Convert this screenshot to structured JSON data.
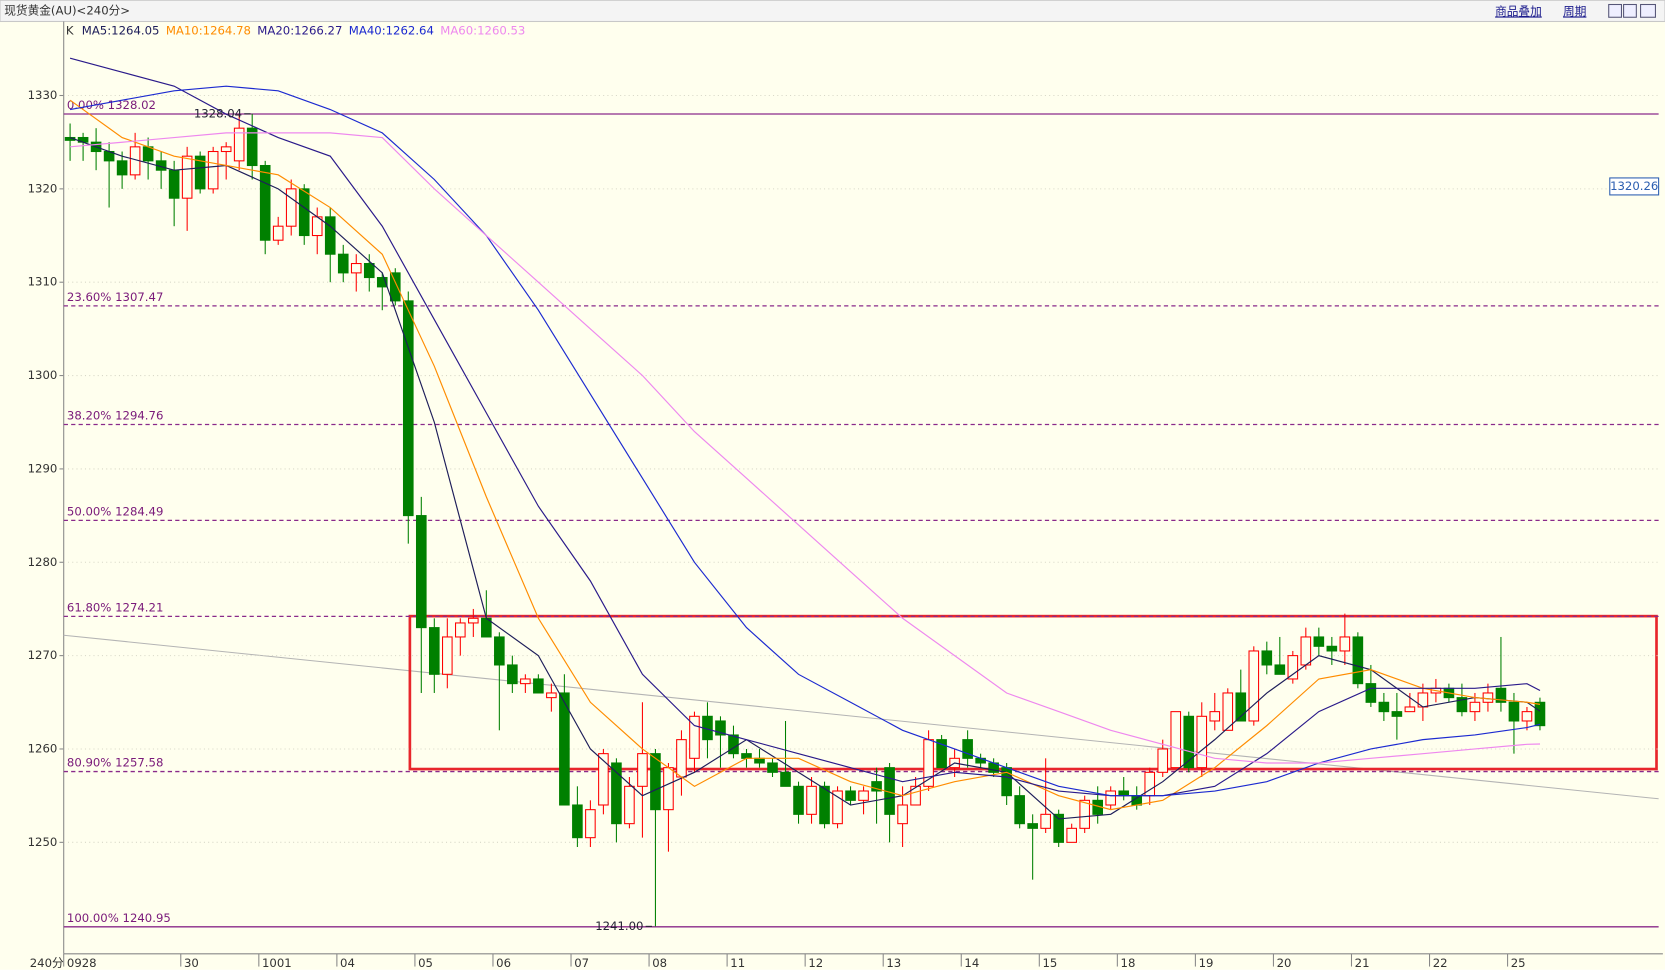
{
  "toolbar": {
    "buttons": [
      "商品叠加",
      "周期"
    ]
  },
  "chart_data": {
    "type": "candlestick",
    "title": "现货黄金(AU)<240分>",
    "legend_prefix": "K",
    "period_label": "240分",
    "categories": [
      "0928",
      null,
      null,
      null,
      null,
      null,
      null,
      null,
      null,
      "30",
      null,
      null,
      null,
      null,
      null,
      "1001",
      null,
      null,
      null,
      null,
      null,
      "04",
      null,
      null,
      null,
      null,
      null,
      "05",
      null,
      null,
      null,
      null,
      null,
      "06",
      null,
      null,
      null,
      null,
      null,
      "07",
      null,
      null,
      null,
      null,
      null,
      "08",
      null,
      null,
      null,
      null,
      null,
      "11",
      null,
      null,
      null,
      null,
      null,
      "12",
      null,
      null,
      null,
      null,
      null,
      "13",
      null,
      null,
      null,
      null,
      null,
      "14",
      null,
      null,
      null,
      null,
      null,
      "15",
      null,
      null,
      null,
      null,
      null,
      "18",
      null,
      null,
      null,
      null,
      null,
      "19",
      null,
      null,
      null,
      null,
      null,
      "20",
      null,
      null,
      null,
      null,
      null,
      "21",
      null,
      null,
      null,
      null,
      null,
      "22",
      null,
      null,
      null,
      null,
      null,
      "25",
      null,
      null
    ],
    "open": [
      1325.5,
      1325.5,
      1325,
      1324,
      1323,
      1321.5,
      1324.5,
      1323,
      1322,
      1319,
      1323.5,
      1320,
      1324,
      1323,
      1326.5,
      1322.5,
      1314.5,
      1316,
      1320,
      1315,
      1317,
      1313,
      1311,
      1312,
      1310.5,
      1311,
      1308,
      1285,
      1273,
      1268,
      1272,
      1273.5,
      1274,
      1272,
      1269,
      1267,
      1267.5,
      1265.5,
      1266,
      1254,
      1250.5,
      1254,
      1258.5,
      1252,
      1256,
      1259.5,
      1253.5,
      1257,
      1259,
      1263.5,
      1263,
      1261.5,
      1259.5,
      1259,
      1258.5,
      1257.5,
      1256,
      1253,
      1256,
      1252,
      1255.5,
      1254.5,
      1256.5,
      1258,
      1252,
      1254,
      1256,
      1261,
      1258,
      1261,
      1259,
      1258.5,
      1258,
      1255,
      1252,
      1251.5,
      1253,
      1250,
      1251.5,
      1254.5,
      1254,
      1255.5,
      1255,
      1255,
      1257.5,
      1258,
      1263.5,
      1258,
      1263,
      1262,
      1266,
      1263,
      1270.5,
      1269,
      1267.5,
      1269,
      1272,
      1271,
      1270.5,
      1272,
      1267,
      1265,
      1264,
      1264,
      1264.5,
      1266,
      1266.5,
      1265.5,
      1264,
      1265,
      1266.5,
      1265,
      1263,
      1265
    ],
    "high": [
      1327,
      1326,
      1326.5,
      1325,
      1324,
      1326,
      1325.5,
      1324,
      1323,
      1324.5,
      1324,
      1324.5,
      1325,
      1328,
      1328.04,
      1323,
      1317,
      1321,
      1320.5,
      1318,
      1318,
      1314,
      1313,
      1313,
      1311,
      1311.5,
      1309,
      1287,
      1274,
      1274,
      1274,
      1275,
      1277,
      1272.5,
      1270,
      1268,
      1268,
      1267,
      1268,
      1256,
      1254.5,
      1260,
      1259,
      1257,
      1265,
      1260,
      1258.5,
      1262,
      1264,
      1265,
      1263.5,
      1262.5,
      1260,
      1260,
      1259,
      1263,
      1256.5,
      1257,
      1256.5,
      1256,
      1256,
      1256,
      1258,
      1258.5,
      1256,
      1257,
      1262,
      1261.5,
      1260,
      1262,
      1259.5,
      1259,
      1258.5,
      1256,
      1253,
      1259,
      1253.5,
      1252,
      1255,
      1256,
      1256,
      1257,
      1256,
      1258,
      1261,
      1264,
      1264,
      1265,
      1266,
      1266.5,
      1268.5,
      1271,
      1271.5,
      1272,
      1270.5,
      1273,
      1273,
      1272,
      1274.5,
      1272.5,
      1269,
      1266,
      1266,
      1266,
      1267,
      1267.5,
      1267,
      1267,
      1266,
      1267,
      1272,
      1266,
      1264.5,
      1265.5
    ],
    "low": [
      1323,
      1323,
      1322,
      1318,
      1320,
      1321,
      1321,
      1320,
      1316,
      1315.5,
      1319.5,
      1319.5,
      1321,
      1322,
      1321,
      1313,
      1314,
      1315,
      1314,
      1313,
      1310,
      1310,
      1309,
      1309,
      1307,
      1307.5,
      1282,
      1266,
      1266,
      1266.5,
      1270,
      1272,
      1272,
      1262,
      1266,
      1266,
      1266,
      1264,
      1254,
      1249.5,
      1249.5,
      1253,
      1250,
      1251.5,
      1250.5,
      1241,
      1249,
      1255,
      1257.5,
      1259,
      1258,
      1259,
      1258,
      1258,
      1257,
      1256,
      1252,
      1252,
      1251.5,
      1251.5,
      1254,
      1253,
      1252,
      1250,
      1249.5,
      1254,
      1255.5,
      1258,
      1257,
      1258,
      1258,
      1257,
      1254,
      1251.5,
      1246,
      1251,
      1249.5,
      1250,
      1251,
      1252,
      1253.5,
      1254.5,
      1253.5,
      1254,
      1257,
      1258,
      1257.5,
      1257,
      1262,
      1262,
      1263,
      1262.5,
      1268,
      1268,
      1267,
      1268.5,
      1270,
      1269,
      1269,
      1266.5,
      1264.5,
      1263,
      1261,
      1264,
      1263,
      1265,
      1265,
      1263.5,
      1263,
      1264,
      1264,
      1259.5,
      1262,
      1262
    ],
    "close": [
      1325.2,
      1325,
      1324,
      1323,
      1321.5,
      1324.5,
      1323,
      1322,
      1319,
      1323.5,
      1320,
      1324,
      1324.5,
      1326.5,
      1322.5,
      1314.5,
      1316,
      1320,
      1315,
      1317,
      1313,
      1311,
      1312,
      1310.5,
      1309.5,
      1308,
      1285,
      1273,
      1268,
      1272,
      1273.5,
      1274,
      1272,
      1269,
      1267,
      1267.5,
      1266,
      1266,
      1254,
      1250.5,
      1253.5,
      1259.5,
      1252,
      1256,
      1259.5,
      1253.5,
      1258,
      1261,
      1263.5,
      1261,
      1261.5,
      1259.5,
      1259,
      1258.5,
      1257.5,
      1256,
      1253,
      1256,
      1252,
      1255.5,
      1254.5,
      1255.5,
      1255.5,
      1253,
      1254,
      1256,
      1261,
      1258,
      1259,
      1259,
      1258.5,
      1257.5,
      1255,
      1252,
      1251.5,
      1253,
      1250,
      1251.5,
      1254.5,
      1253,
      1255.5,
      1255,
      1254,
      1257.5,
      1260,
      1264,
      1258,
      1263.5,
      1264,
      1266,
      1263,
      1270.5,
      1269,
      1268,
      1270,
      1272,
      1271,
      1270.5,
      1272,
      1267,
      1265,
      1264,
      1263.5,
      1264.5,
      1266,
      1266.5,
      1265.5,
      1264,
      1265,
      1266,
      1265,
      1263,
      1264,
      1262.5
    ],
    "up_color": "#ff0000",
    "down_color": "#008000",
    "ylim": [
      1238.4,
      1337.7
    ],
    "yticks": [
      1250,
      1260,
      1270,
      1280,
      1290,
      1300,
      1310,
      1320,
      1330
    ],
    "grid": true,
    "overlays": {
      "x": [
        0,
        4,
        8,
        12,
        16,
        20,
        24,
        28,
        32,
        36,
        40,
        44,
        48,
        52,
        56,
        60,
        64,
        68,
        72,
        76,
        80,
        84,
        88,
        92,
        96,
        100,
        104,
        108,
        112,
        113
      ],
      "series": [
        {
          "name": "MA5:1264.05",
          "color": "#1e1e5a",
          "values": [
            1325.5,
            1323.5,
            1322,
            1322.5,
            1320,
            1316,
            1311,
            1295,
            1274,
            1270,
            1260,
            1255,
            1257.5,
            1261,
            1257.5,
            1254,
            1255,
            1258.5,
            1257.5,
            1252.5,
            1253,
            1256.5,
            1261,
            1266,
            1270,
            1268.5,
            1264.5,
            1265.5,
            1265,
            1264.05
          ]
        },
        {
          "name": "MA10:1264.78",
          "color": "#ff8c00",
          "values": [
            1329.5,
            1325.5,
            1323.5,
            1322.5,
            1321.5,
            1318,
            1313,
            1301,
            1287,
            1274,
            1265,
            1260,
            1256,
            1259,
            1259,
            1256.5,
            1255,
            1256.5,
            1257.5,
            1255,
            1253.5,
            1254.5,
            1258,
            1262.5,
            1267.5,
            1268.5,
            1266.5,
            1265.5,
            1265,
            1264.78
          ]
        },
        {
          "name": "MA20:1266.27",
          "color": "#2a1a8a",
          "values": [
            1334,
            1332.5,
            1331,
            1328,
            1325.5,
            1323.5,
            1316,
            1306,
            1296,
            1286,
            1278,
            1268,
            1262.5,
            1261,
            1259.5,
            1258,
            1256.5,
            1257.5,
            1257,
            1255.5,
            1255,
            1255,
            1256,
            1259.5,
            1264,
            1266.5,
            1266.5,
            1266.5,
            1267,
            1266.27
          ]
        },
        {
          "name": "MA40:1262.64",
          "color": "#1c2ad0",
          "values": [
            1328.5,
            1329.5,
            1330.5,
            1331,
            1330.5,
            1328.5,
            1326,
            1321,
            1315,
            1307,
            1298,
            1289,
            1280,
            1273,
            1268,
            1265,
            1262,
            1260,
            1258,
            1256,
            1255,
            1255,
            1255.5,
            1256.5,
            1258.5,
            1260,
            1261,
            1261.5,
            1262.3,
            1262.64
          ]
        },
        {
          "name": "MA60:1260.53",
          "color": "#ee88ee",
          "values": [
            1324.5,
            1325,
            1325.5,
            1326,
            1326,
            1326,
            1325.5,
            1320,
            1315,
            1310,
            1305,
            1300,
            1294,
            1289,
            1284,
            1279,
            1274,
            1270,
            1266,
            1264,
            1262,
            1260.5,
            1259,
            1258.5,
            1258.5,
            1259,
            1259.5,
            1260,
            1260.5,
            1260.53
          ]
        }
      ]
    },
    "levels": [
      {
        "value": 1328.02,
        "label": "0.00% 1328.02"
      },
      {
        "value": 1307.47,
        "label": "23.60% 1307.47"
      },
      {
        "value": 1294.76,
        "label": "38.20% 1294.76"
      },
      {
        "value": 1284.49,
        "label": "50.00% 1284.49"
      },
      {
        "value": 1274.21,
        "label": "61.80% 1274.21"
      },
      {
        "value": 1257.58,
        "label": "80.90% 1257.58"
      },
      {
        "value": 1240.95,
        "label": "100.00% 1240.95"
      }
    ],
    "annotations": [
      {
        "value": 1328.04,
        "label": "1328.04"
      },
      {
        "value": 1241,
        "label": "1241.00"
      }
    ],
    "last_price": 1320.26
  }
}
